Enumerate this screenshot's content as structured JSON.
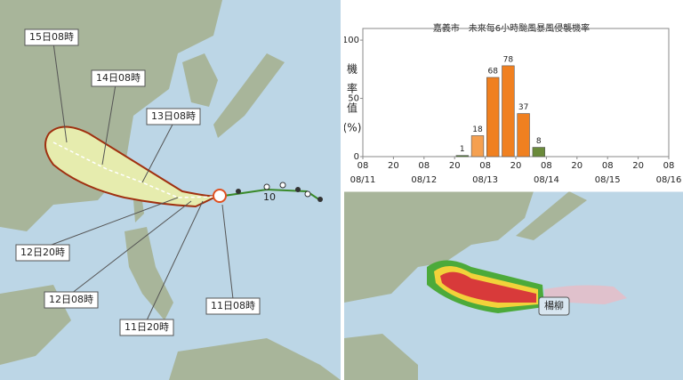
{
  "track_map": {
    "labels": [
      "15日08時",
      "14日08時",
      "13日08時",
      "12日20時",
      "12日08時",
      "11日20時",
      "11日08時"
    ],
    "scale_mark": "10"
  },
  "chart_data": {
    "type": "bar",
    "title": "嘉義市 - 未來每6小時颱風暴風侵襲機率",
    "ylabel": [
      "機",
      "率",
      "值",
      "(%)"
    ],
    "categories": [
      null,
      null,
      null,
      null,
      null,
      null,
      null,
      null,
      null,
      null,
      null,
      null,
      null,
      null,
      null,
      null,
      null,
      null,
      null,
      null
    ],
    "values": [
      null,
      null,
      null,
      null,
      null,
      null,
      1,
      18,
      68,
      78,
      37,
      8,
      null,
      null,
      null,
      null,
      null,
      null,
      null,
      null
    ],
    "colors": [
      "#4a7a2a",
      "#f5a050",
      "#f08020",
      "#f08020",
      "#f08020",
      "#6a8a3a"
    ],
    "ylim": [
      0,
      110
    ],
    "yticks": [
      0,
      50,
      100
    ],
    "xtick_labels": [
      "08",
      "20",
      "08",
      "20",
      "08",
      "20",
      "08",
      "20",
      "08",
      "20",
      "08"
    ],
    "xtick_dates": [
      "08/11",
      null,
      "08/12",
      null,
      "08/13",
      null,
      "08/14",
      null,
      "08/15",
      null,
      "08/16"
    ]
  },
  "wind_map": {
    "label": "楊柳"
  }
}
